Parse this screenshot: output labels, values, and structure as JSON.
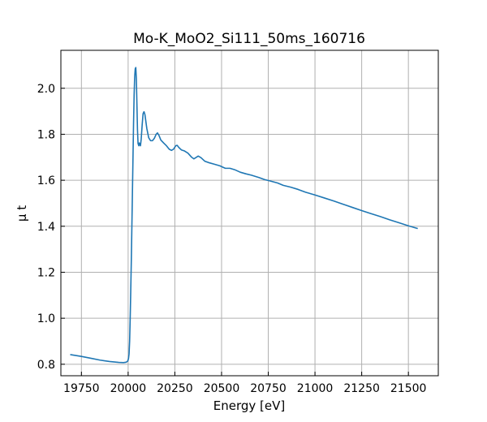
{
  "chart_data": {
    "type": "line",
    "title": "Mo-K_MoO2_Si111_50ms_160716",
    "xlabel": "Energy [eV]",
    "ylabel": "μ t",
    "xlim": [
      19640,
      21660
    ],
    "ylim": [
      0.75,
      2.165
    ],
    "xticks": [
      19750,
      20000,
      20250,
      20500,
      20750,
      21000,
      21250,
      21500
    ],
    "yticks": [
      0.8,
      1.0,
      1.2,
      1.4,
      1.6,
      1.8,
      2.0
    ],
    "grid": true,
    "colors": {
      "line": "#1f77b4"
    },
    "series": [
      {
        "points": [
          [
            19690,
            0.842
          ],
          [
            19750,
            0.834
          ],
          [
            19800,
            0.826
          ],
          [
            19850,
            0.818
          ],
          [
            19900,
            0.812
          ],
          [
            19950,
            0.808
          ],
          [
            19975,
            0.807
          ],
          [
            19990,
            0.809
          ],
          [
            19998,
            0.814
          ],
          [
            20002,
            0.825
          ],
          [
            20005,
            0.845
          ],
          [
            20008,
            0.9
          ],
          [
            20011,
            1.0
          ],
          [
            20014,
            1.12
          ],
          [
            20017,
            1.25
          ],
          [
            20020,
            1.4
          ],
          [
            20023,
            1.55
          ],
          [
            20026,
            1.7
          ],
          [
            20029,
            1.85
          ],
          [
            20032,
            1.97
          ],
          [
            20035,
            2.05
          ],
          [
            20038,
            2.085
          ],
          [
            20041,
            2.09
          ],
          [
            20044,
            2.04
          ],
          [
            20047,
            1.93
          ],
          [
            20050,
            1.82
          ],
          [
            20053,
            1.76
          ],
          [
            20057,
            1.75
          ],
          [
            20060,
            1.762
          ],
          [
            20063,
            1.758
          ],
          [
            20066,
            1.75
          ],
          [
            20070,
            1.78
          ],
          [
            20075,
            1.84
          ],
          [
            20080,
            1.89
          ],
          [
            20085,
            1.898
          ],
          [
            20090,
            1.885
          ],
          [
            20100,
            1.825
          ],
          [
            20110,
            1.785
          ],
          [
            20120,
            1.772
          ],
          [
            20130,
            1.772
          ],
          [
            20140,
            1.782
          ],
          [
            20150,
            1.8
          ],
          [
            20157,
            1.806
          ],
          [
            20165,
            1.795
          ],
          [
            20175,
            1.775
          ],
          [
            20190,
            1.762
          ],
          [
            20205,
            1.75
          ],
          [
            20220,
            1.735
          ],
          [
            20232,
            1.73
          ],
          [
            20243,
            1.735
          ],
          [
            20255,
            1.75
          ],
          [
            20262,
            1.752
          ],
          [
            20272,
            1.742
          ],
          [
            20285,
            1.732
          ],
          [
            20300,
            1.728
          ],
          [
            20320,
            1.718
          ],
          [
            20340,
            1.7
          ],
          [
            20352,
            1.693
          ],
          [
            20365,
            1.7
          ],
          [
            20375,
            1.705
          ],
          [
            20390,
            1.698
          ],
          [
            20410,
            1.683
          ],
          [
            20430,
            1.677
          ],
          [
            20460,
            1.67
          ],
          [
            20490,
            1.663
          ],
          [
            20520,
            1.652
          ],
          [
            20545,
            1.652
          ],
          [
            20570,
            1.646
          ],
          [
            20600,
            1.635
          ],
          [
            20630,
            1.628
          ],
          [
            20660,
            1.622
          ],
          [
            20700,
            1.612
          ],
          [
            20730,
            1.603
          ],
          [
            20760,
            1.597
          ],
          [
            20800,
            1.588
          ],
          [
            20830,
            1.578
          ],
          [
            20870,
            1.57
          ],
          [
            20910,
            1.56
          ],
          [
            20950,
            1.548
          ],
          [
            21000,
            1.536
          ],
          [
            21050,
            1.523
          ],
          [
            21100,
            1.51
          ],
          [
            21150,
            1.496
          ],
          [
            21200,
            1.482
          ],
          [
            21250,
            1.468
          ],
          [
            21300,
            1.455
          ],
          [
            21350,
            1.442
          ],
          [
            21400,
            1.428
          ],
          [
            21450,
            1.415
          ],
          [
            21500,
            1.402
          ],
          [
            21550,
            1.39
          ]
        ]
      }
    ]
  }
}
